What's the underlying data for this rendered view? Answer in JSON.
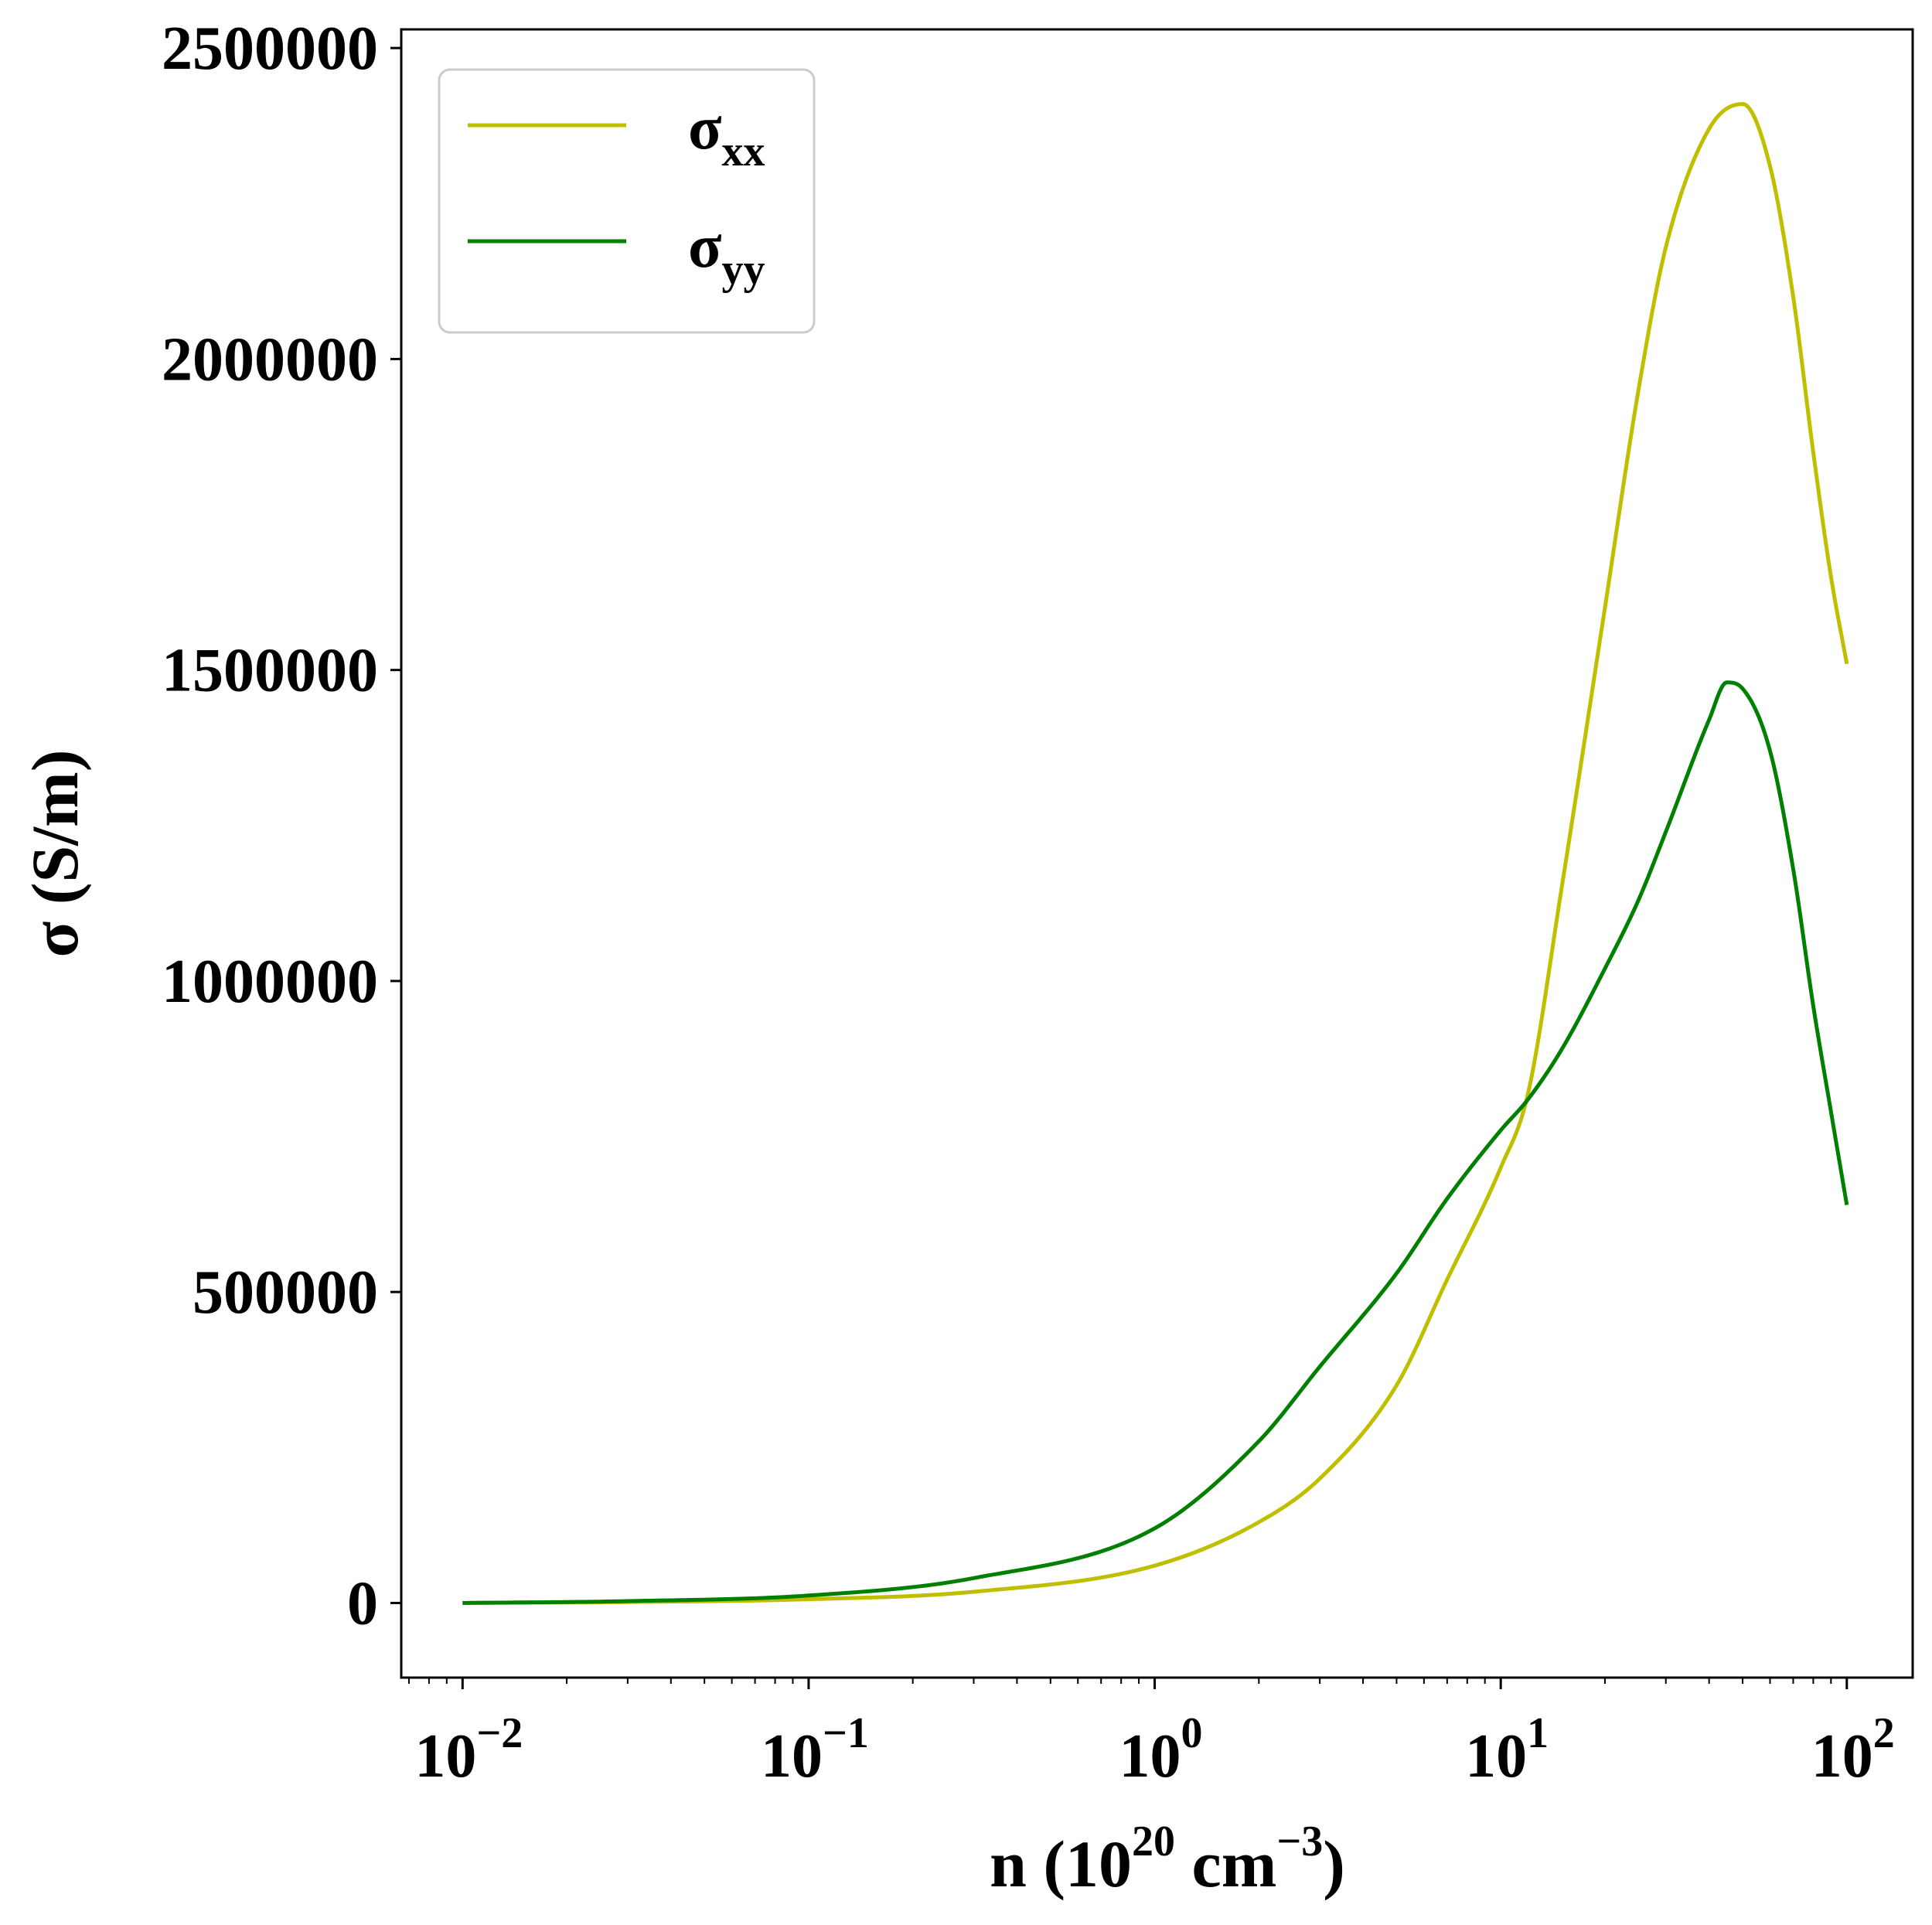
{
  "chart_data": {
    "type": "line",
    "xlabel": {
      "base": "n (10",
      "exp1": "20",
      "mid": " cm",
      "exp2": "−3",
      "end": ")"
    },
    "ylabel": "σ (S/m)",
    "xscale": "log",
    "xlim": [
      0.00665,
      155
    ],
    "ylim": [
      -120000,
      2530000
    ],
    "xticks": [
      {
        "value": 0.01,
        "base": "10",
        "exp": "−2"
      },
      {
        "value": 0.1,
        "base": "10",
        "exp": "−1"
      },
      {
        "value": 1,
        "base": "10",
        "exp": "0"
      },
      {
        "value": 10,
        "base": "10",
        "exp": "1"
      },
      {
        "value": 100,
        "base": "10",
        "exp": "2"
      }
    ],
    "yticks": [
      {
        "value": 0,
        "label": "0"
      },
      {
        "value": 500000,
        "label": "500000"
      },
      {
        "value": 1000000,
        "label": "1000000"
      },
      {
        "value": 1500000,
        "label": "1500000"
      },
      {
        "value": 2000000,
        "label": "2000000"
      },
      {
        "value": 2500000,
        "label": "2500000"
      }
    ],
    "grid": false,
    "legend_position": "top-left",
    "series": [
      {
        "name": "σxx",
        "label_main": "σ",
        "label_sub": "xx",
        "color": "#bfbf00",
        "x": [
          0.01,
          0.03,
          0.1,
          0.3,
          1,
          2,
          3,
          5,
          7,
          10,
          12,
          15,
          20,
          25,
          30,
          40,
          50,
          60,
          70,
          80,
          90,
          100
        ],
        "y": [
          0,
          1500,
          6000,
          18000,
          60000,
          130000,
          200000,
          350000,
          520000,
          700000,
          820000,
          1150000,
          1600000,
          1950000,
          2180000,
          2370000,
          2410000,
          2310000,
          2100000,
          1850000,
          1650000,
          1510000
        ]
      },
      {
        "name": "σyy",
        "label_main": "σ",
        "label_sub": "yy",
        "color": "#008000",
        "x": [
          0.01,
          0.03,
          0.1,
          0.3,
          1,
          2,
          3,
          5,
          7,
          10,
          12,
          15,
          20,
          25,
          30,
          40,
          45,
          50,
          60,
          70,
          80,
          90,
          100
        ],
        "y": [
          0,
          3000,
          12000,
          40000,
          120000,
          260000,
          380000,
          530000,
          650000,
          760000,
          810000,
          890000,
          1020000,
          1130000,
          1240000,
          1420000,
          1480000,
          1470000,
          1370000,
          1180000,
          960000,
          790000,
          640000
        ]
      }
    ]
  }
}
